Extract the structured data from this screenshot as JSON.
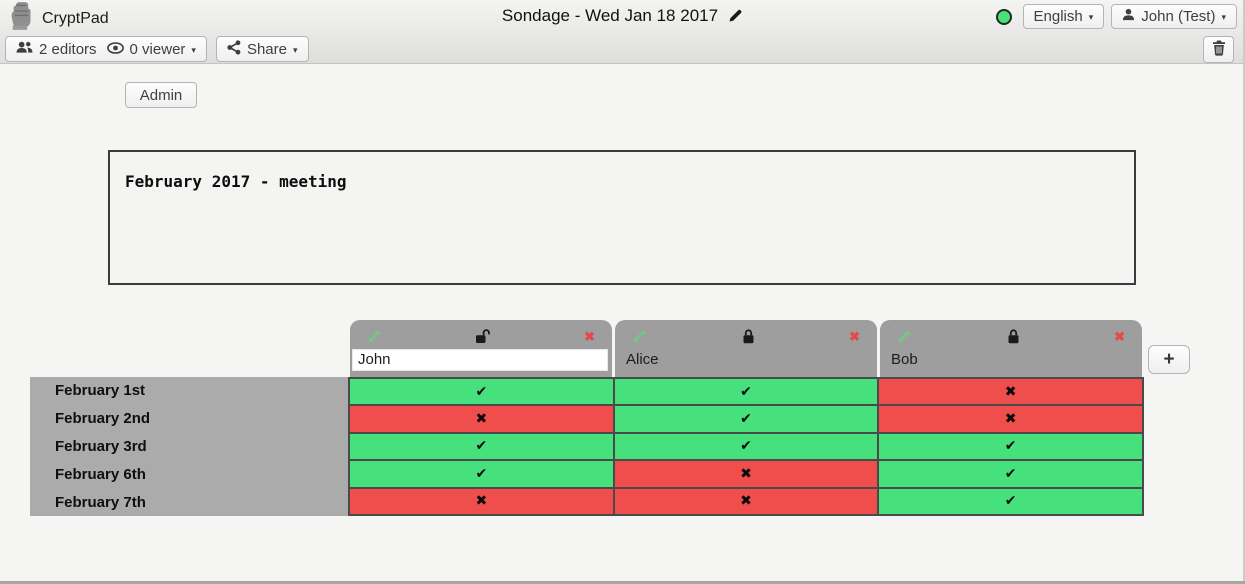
{
  "topbar": {
    "app_name": "CryptPad",
    "doc_title": "Sondage - Wed Jan 18 2017",
    "language_label": "English",
    "user_label": "John (Test)",
    "editors_label": "2 editors",
    "viewers_label": "0 viewer",
    "share_label": "Share",
    "caret": "▾"
  },
  "admin_label": "Admin",
  "description_text": "February 2017 - meeting",
  "poll": {
    "add_column_label": "+",
    "remove_column_glyph": "✖",
    "columns": [
      {
        "name": "John",
        "editable": true,
        "locked": false
      },
      {
        "name": "Alice",
        "editable": false,
        "locked": true
      },
      {
        "name": "Bob",
        "editable": false,
        "locked": true
      }
    ],
    "rows": [
      "February 1st",
      "February 2nd",
      "February 3rd",
      "February 6th",
      "February 7th"
    ],
    "votes": [
      [
        "yes",
        "yes",
        "no"
      ],
      [
        "no",
        "yes",
        "no"
      ],
      [
        "yes",
        "yes",
        "yes"
      ],
      [
        "yes",
        "no",
        "yes"
      ],
      [
        "no",
        "no",
        "yes"
      ]
    ],
    "glyphs": {
      "yes": "✔",
      "no": "✖"
    }
  },
  "colors": {
    "yes_green": "#46E17D",
    "no_red": "#F04D4D",
    "status_green": "#4BDE78"
  }
}
